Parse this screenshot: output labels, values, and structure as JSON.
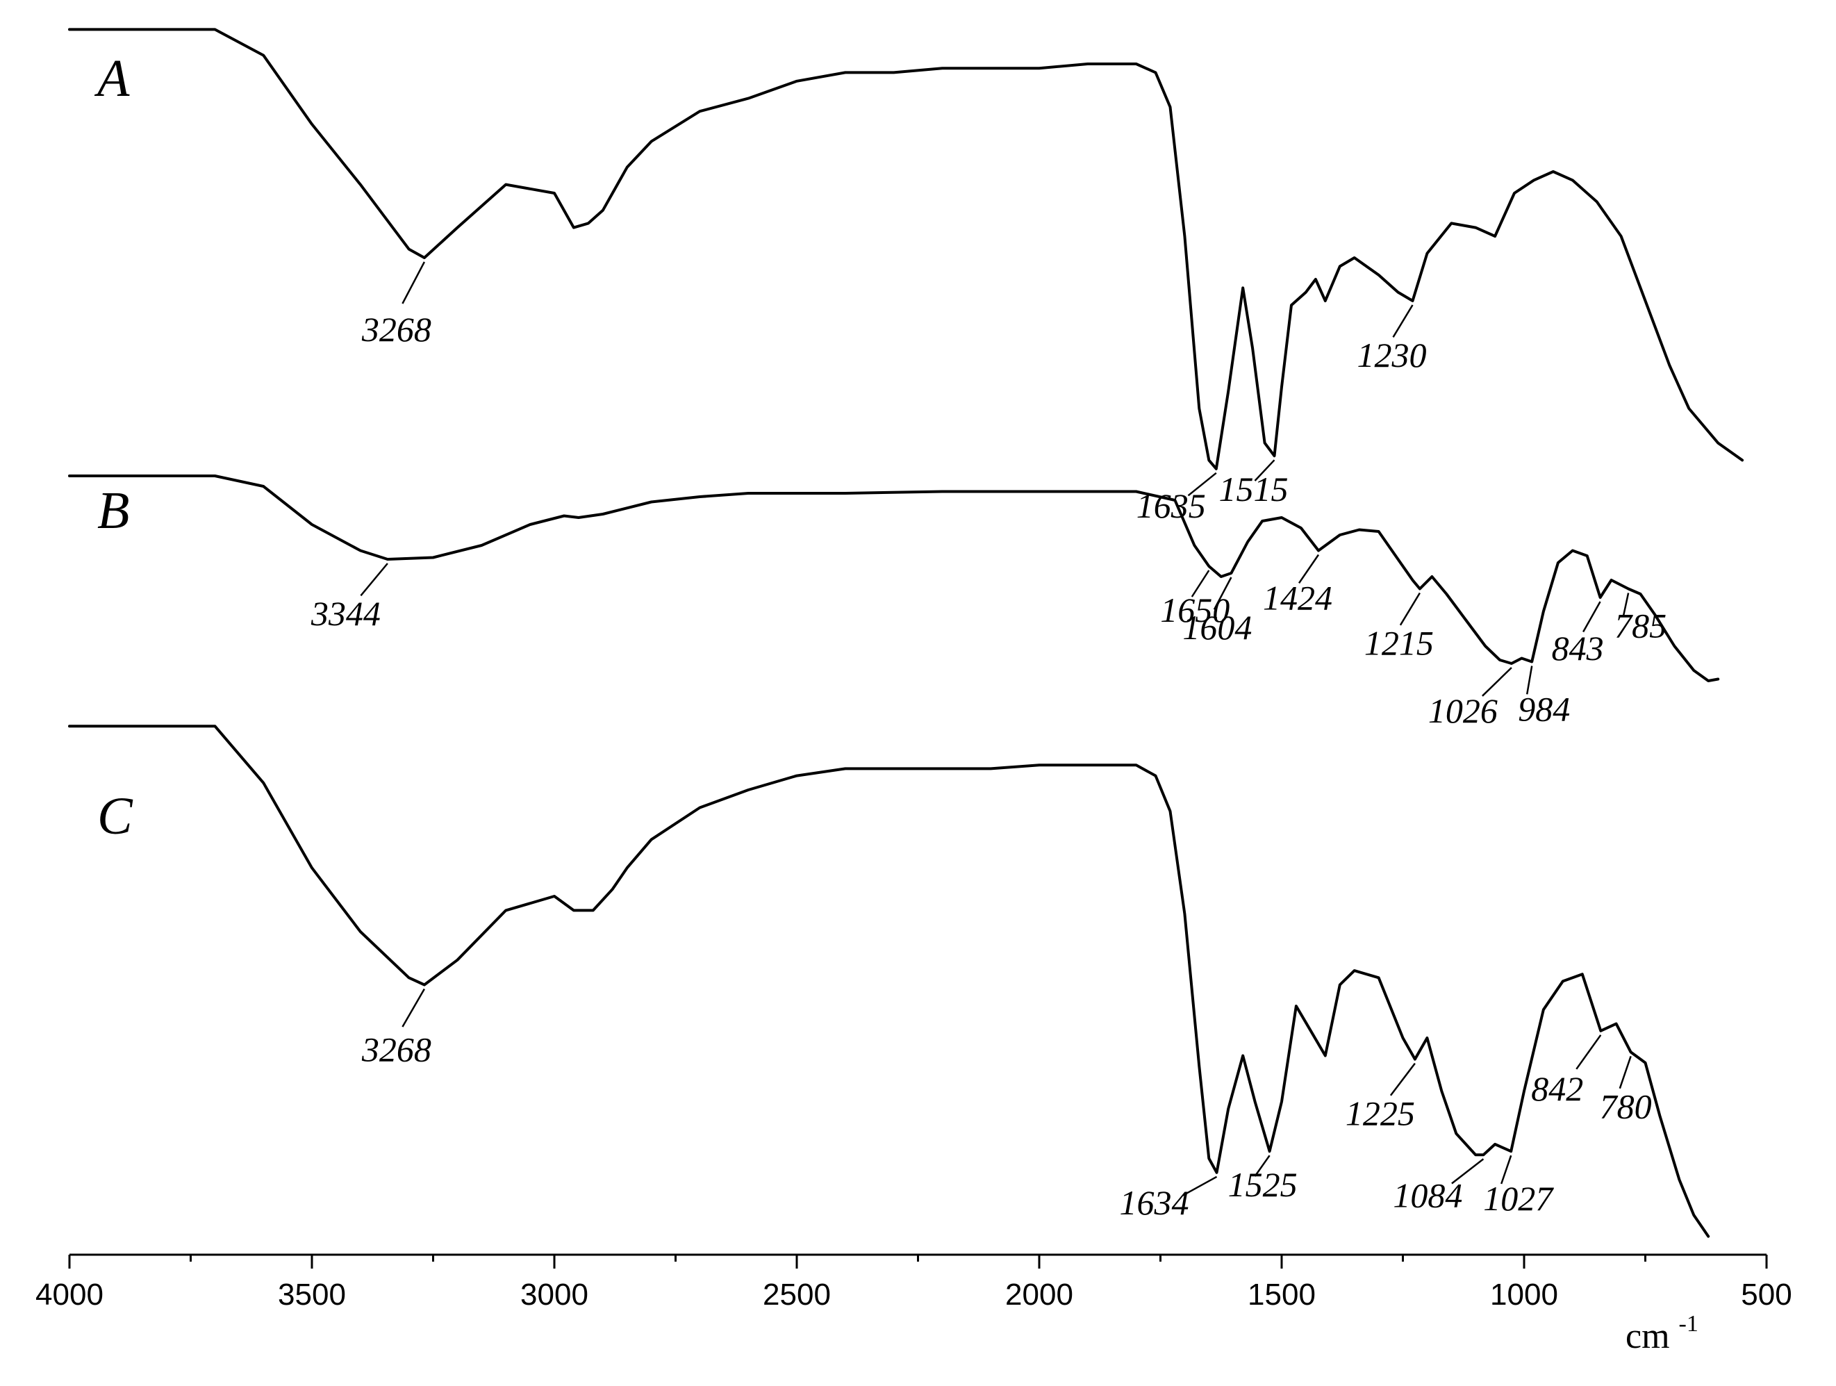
{
  "chart_data": {
    "type": "line",
    "xlabel": "cm-1",
    "xlabel_main": "cm",
    "xlabel_sup": "-1",
    "xlim": [
      4000,
      500
    ],
    "x_reversed": true,
    "x_ticks": [
      "4000",
      "3500",
      "3000",
      "2500",
      "2000",
      "1500",
      "1000",
      "500"
    ],
    "x_tick_values": [
      4000,
      3500,
      3000,
      2500,
      2000,
      1500,
      1000,
      500
    ],
    "y_axis_visible": false,
    "grid": false,
    "legend": "none",
    "line_color": "#000000",
    "series": [
      {
        "name": "A",
        "values": [
          [
            4000,
            0.98
          ],
          [
            3700,
            0.98
          ],
          [
            3600,
            0.92
          ],
          [
            3500,
            0.76
          ],
          [
            3400,
            0.62
          ],
          [
            3300,
            0.47
          ],
          [
            3268,
            0.45
          ],
          [
            3200,
            0.52
          ],
          [
            3100,
            0.62
          ],
          [
            3000,
            0.6
          ],
          [
            2960,
            0.52
          ],
          [
            2930,
            0.53
          ],
          [
            2900,
            0.56
          ],
          [
            2850,
            0.66
          ],
          [
            2800,
            0.72
          ],
          [
            2700,
            0.79
          ],
          [
            2600,
            0.82
          ],
          [
            2500,
            0.86
          ],
          [
            2400,
            0.88
          ],
          [
            2300,
            0.88
          ],
          [
            2200,
            0.89
          ],
          [
            2100,
            0.89
          ],
          [
            2000,
            0.89
          ],
          [
            1900,
            0.9
          ],
          [
            1800,
            0.9
          ],
          [
            1760,
            0.88
          ],
          [
            1730,
            0.8
          ],
          [
            1700,
            0.5
          ],
          [
            1670,
            0.1
          ],
          [
            1650,
            -0.02
          ],
          [
            1635,
            -0.04
          ],
          [
            1610,
            0.14
          ],
          [
            1580,
            0.38
          ],
          [
            1560,
            0.24
          ],
          [
            1535,
            0.02
          ],
          [
            1515,
            -0.01
          ],
          [
            1500,
            0.15
          ],
          [
            1480,
            0.34
          ],
          [
            1450,
            0.37
          ],
          [
            1430,
            0.4
          ],
          [
            1410,
            0.35
          ],
          [
            1380,
            0.43
          ],
          [
            1350,
            0.45
          ],
          [
            1300,
            0.41
          ],
          [
            1260,
            0.37
          ],
          [
            1230,
            0.35
          ],
          [
            1200,
            0.46
          ],
          [
            1150,
            0.53
          ],
          [
            1100,
            0.52
          ],
          [
            1060,
            0.5
          ],
          [
            1020,
            0.6
          ],
          [
            980,
            0.63
          ],
          [
            940,
            0.65
          ],
          [
            900,
            0.63
          ],
          [
            850,
            0.58
          ],
          [
            800,
            0.5
          ],
          [
            750,
            0.35
          ],
          [
            700,
            0.2
          ],
          [
            660,
            0.1
          ],
          [
            600,
            0.02
          ],
          [
            550,
            -0.02
          ]
        ]
      },
      {
        "name": "B",
        "values": [
          [
            4000,
            0.98
          ],
          [
            3700,
            0.98
          ],
          [
            3600,
            0.92
          ],
          [
            3500,
            0.7
          ],
          [
            3400,
            0.55
          ],
          [
            3344,
            0.5
          ],
          [
            3250,
            0.51
          ],
          [
            3150,
            0.58
          ],
          [
            3050,
            0.7
          ],
          [
            2980,
            0.75
          ],
          [
            2950,
            0.74
          ],
          [
            2900,
            0.76
          ],
          [
            2800,
            0.83
          ],
          [
            2700,
            0.86
          ],
          [
            2600,
            0.88
          ],
          [
            2400,
            0.88
          ],
          [
            2200,
            0.89
          ],
          [
            2000,
            0.89
          ],
          [
            1800,
            0.89
          ],
          [
            1720,
            0.84
          ],
          [
            1680,
            0.58
          ],
          [
            1650,
            0.46
          ],
          [
            1625,
            0.4
          ],
          [
            1604,
            0.42
          ],
          [
            1570,
            0.6
          ],
          [
            1540,
            0.72
          ],
          [
            1500,
            0.74
          ],
          [
            1460,
            0.68
          ],
          [
            1424,
            0.55
          ],
          [
            1380,
            0.64
          ],
          [
            1340,
            0.67
          ],
          [
            1300,
            0.66
          ],
          [
            1260,
            0.5
          ],
          [
            1230,
            0.38
          ],
          [
            1215,
            0.33
          ],
          [
            1190,
            0.4
          ],
          [
            1160,
            0.3
          ],
          [
            1120,
            0.15
          ],
          [
            1080,
            0.0
          ],
          [
            1050,
            -0.08
          ],
          [
            1026,
            -0.1
          ],
          [
            1005,
            -0.07
          ],
          [
            984,
            -0.09
          ],
          [
            960,
            0.2
          ],
          [
            930,
            0.48
          ],
          [
            900,
            0.55
          ],
          [
            870,
            0.52
          ],
          [
            843,
            0.28
          ],
          [
            820,
            0.38
          ],
          [
            785,
            0.33
          ],
          [
            760,
            0.3
          ],
          [
            730,
            0.18
          ],
          [
            690,
            0.0
          ],
          [
            650,
            -0.14
          ],
          [
            620,
            -0.2
          ],
          [
            600,
            -0.19
          ]
        ]
      },
      {
        "name": "C",
        "values": [
          [
            4000,
            0.98
          ],
          [
            3700,
            0.98
          ],
          [
            3600,
            0.82
          ],
          [
            3500,
            0.58
          ],
          [
            3400,
            0.4
          ],
          [
            3300,
            0.27
          ],
          [
            3268,
            0.25
          ],
          [
            3200,
            0.32
          ],
          [
            3100,
            0.46
          ],
          [
            3000,
            0.5
          ],
          [
            2960,
            0.46
          ],
          [
            2920,
            0.46
          ],
          [
            2880,
            0.52
          ],
          [
            2850,
            0.58
          ],
          [
            2800,
            0.66
          ],
          [
            2700,
            0.75
          ],
          [
            2600,
            0.8
          ],
          [
            2500,
            0.84
          ],
          [
            2400,
            0.86
          ],
          [
            2300,
            0.86
          ],
          [
            2200,
            0.86
          ],
          [
            2100,
            0.86
          ],
          [
            2000,
            0.87
          ],
          [
            1900,
            0.87
          ],
          [
            1800,
            0.87
          ],
          [
            1760,
            0.84
          ],
          [
            1730,
            0.74
          ],
          [
            1700,
            0.45
          ],
          [
            1670,
            0.02
          ],
          [
            1650,
            -0.24
          ],
          [
            1634,
            -0.28
          ],
          [
            1610,
            -0.1
          ],
          [
            1580,
            0.05
          ],
          [
            1555,
            -0.08
          ],
          [
            1525,
            -0.22
          ],
          [
            1500,
            -0.08
          ],
          [
            1470,
            0.19
          ],
          [
            1440,
            0.12
          ],
          [
            1410,
            0.05
          ],
          [
            1380,
            0.25
          ],
          [
            1350,
            0.29
          ],
          [
            1300,
            0.27
          ],
          [
            1250,
            0.1
          ],
          [
            1225,
            0.04
          ],
          [
            1200,
            0.1
          ],
          [
            1170,
            -0.05
          ],
          [
            1140,
            -0.17
          ],
          [
            1100,
            -0.23
          ],
          [
            1084,
            -0.23
          ],
          [
            1060,
            -0.2
          ],
          [
            1027,
            -0.22
          ],
          [
            1000,
            -0.05
          ],
          [
            960,
            0.18
          ],
          [
            920,
            0.26
          ],
          [
            880,
            0.28
          ],
          [
            842,
            0.12
          ],
          [
            810,
            0.14
          ],
          [
            780,
            0.06
          ],
          [
            750,
            0.03
          ],
          [
            720,
            -0.12
          ],
          [
            680,
            -0.3
          ],
          [
            650,
            -0.4
          ],
          [
            620,
            -0.46
          ]
        ]
      }
    ],
    "annotations": [
      {
        "series": "A",
        "text": "3268",
        "x": 3268
      },
      {
        "series": "A",
        "text": "1230",
        "x": 1230
      },
      {
        "series": "A",
        "text": "1635",
        "x": 1635
      },
      {
        "series": "A",
        "text": "1515",
        "x": 1515
      },
      {
        "series": "B",
        "text": "3344",
        "x": 3344
      },
      {
        "series": "B",
        "text": "1650",
        "x": 1650
      },
      {
        "series": "B",
        "text": "1604",
        "x": 1604
      },
      {
        "series": "B",
        "text": "1424",
        "x": 1424
      },
      {
        "series": "B",
        "text": "1215",
        "x": 1215
      },
      {
        "series": "B",
        "text": "843",
        "x": 843
      },
      {
        "series": "B",
        "text": "785",
        "x": 785
      },
      {
        "series": "B",
        "text": "1026",
        "x": 1026
      },
      {
        "series": "B",
        "text": "984",
        "x": 984
      },
      {
        "series": "C",
        "text": "3268",
        "x": 3268
      },
      {
        "series": "C",
        "text": "1225",
        "x": 1225
      },
      {
        "series": "C",
        "text": "842",
        "x": 842
      },
      {
        "series": "C",
        "text": "780",
        "x": 780
      },
      {
        "series": "C",
        "text": "1634",
        "x": 1634
      },
      {
        "series": "C",
        "text": "1525",
        "x": 1525
      },
      {
        "series": "C",
        "text": "1084",
        "x": 1084
      },
      {
        "series": "C",
        "text": "1027",
        "x": 1027
      }
    ]
  }
}
